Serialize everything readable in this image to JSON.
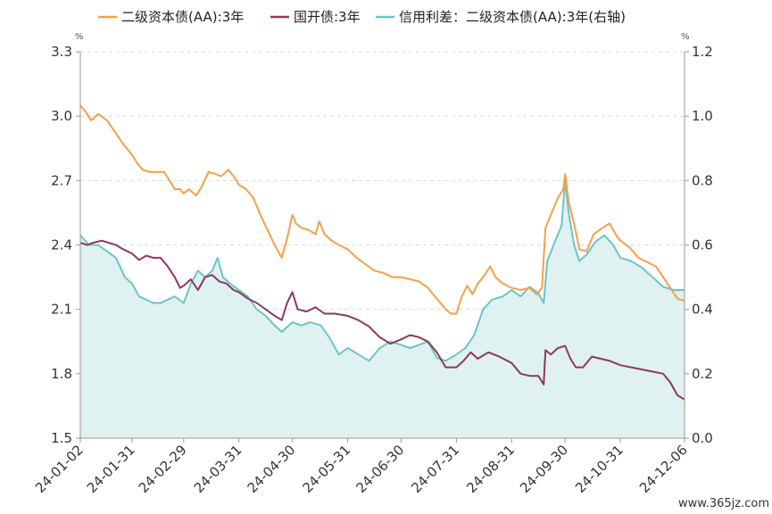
{
  "chart_data": {
    "type": "line",
    "title": "",
    "xlabel": "",
    "ylabel_left_unit": "%",
    "ylabel_right_unit": "%",
    "ylim_left": [
      1.5,
      3.3
    ],
    "ylim_right": [
      0.0,
      1.2
    ],
    "yticks_left": [
      "3.3",
      "3.0",
      "2.7",
      "2.4",
      "2.1",
      "1.8",
      "1.5"
    ],
    "yticks_right": [
      "1.2",
      "1.0",
      "0.8",
      "0.6",
      "0.4",
      "0.2",
      "0.0"
    ],
    "xticks": [
      "24-01-02",
      "24-01-31",
      "24-02-29",
      "24-03-31",
      "24-04-30",
      "24-05-31",
      "24-06-30",
      "24-07-31",
      "24-08-31",
      "24-09-30",
      "24-10-31",
      "24-12-06"
    ],
    "xlim": [
      "2024-01-02",
      "2024-12-06"
    ],
    "grid": true,
    "legend_position": "top",
    "series": [
      {
        "name": "二级资本债(AA):3年",
        "axis": "left",
        "color": "#f5a04a",
        "style": "line",
        "points": [
          [
            "2024-01-02",
            3.05
          ],
          [
            "2024-01-05",
            3.02
          ],
          [
            "2024-01-08",
            2.98
          ],
          [
            "2024-01-12",
            3.01
          ],
          [
            "2024-01-17",
            2.98
          ],
          [
            "2024-01-22",
            2.92
          ],
          [
            "2024-01-26",
            2.87
          ],
          [
            "2024-01-31",
            2.82
          ],
          [
            "2024-02-03",
            2.78
          ],
          [
            "2024-02-06",
            2.75
          ],
          [
            "2024-02-10",
            2.74
          ],
          [
            "2024-02-14",
            2.74
          ],
          [
            "2024-02-18",
            2.74
          ],
          [
            "2024-02-21",
            2.7
          ],
          [
            "2024-02-24",
            2.66
          ],
          [
            "2024-02-27",
            2.66
          ],
          [
            "2024-02-29",
            2.64
          ],
          [
            "2024-03-03",
            2.66
          ],
          [
            "2024-03-07",
            2.63
          ],
          [
            "2024-03-10",
            2.67
          ],
          [
            "2024-03-14",
            2.74
          ],
          [
            "2024-03-18",
            2.73
          ],
          [
            "2024-03-21",
            2.72
          ],
          [
            "2024-03-25",
            2.75
          ],
          [
            "2024-03-28",
            2.72
          ],
          [
            "2024-03-31",
            2.68
          ],
          [
            "2024-04-04",
            2.66
          ],
          [
            "2024-04-08",
            2.62
          ],
          [
            "2024-04-12",
            2.54
          ],
          [
            "2024-04-16",
            2.47
          ],
          [
            "2024-04-20",
            2.4
          ],
          [
            "2024-04-24",
            2.34
          ],
          [
            "2024-04-27",
            2.43
          ],
          [
            "2024-04-30",
            2.54
          ],
          [
            "2024-05-02",
            2.5
          ],
          [
            "2024-05-05",
            2.48
          ],
          [
            "2024-05-09",
            2.47
          ],
          [
            "2024-05-13",
            2.45
          ],
          [
            "2024-05-15",
            2.51
          ],
          [
            "2024-05-18",
            2.45
          ],
          [
            "2024-05-22",
            2.42
          ],
          [
            "2024-05-26",
            2.4
          ],
          [
            "2024-05-31",
            2.38
          ],
          [
            "2024-06-05",
            2.34
          ],
          [
            "2024-06-10",
            2.31
          ],
          [
            "2024-06-15",
            2.28
          ],
          [
            "2024-06-20",
            2.27
          ],
          [
            "2024-06-25",
            2.25
          ],
          [
            "2024-06-30",
            2.25
          ],
          [
            "2024-07-05",
            2.24
          ],
          [
            "2024-07-10",
            2.23
          ],
          [
            "2024-07-15",
            2.2
          ],
          [
            "2024-07-20",
            2.15
          ],
          [
            "2024-07-25",
            2.1
          ],
          [
            "2024-07-28",
            2.08
          ],
          [
            "2024-07-31",
            2.08
          ],
          [
            "2024-08-03",
            2.16
          ],
          [
            "2024-08-06",
            2.21
          ],
          [
            "2024-08-09",
            2.17
          ],
          [
            "2024-08-12",
            2.22
          ],
          [
            "2024-08-15",
            2.25
          ],
          [
            "2024-08-19",
            2.3
          ],
          [
            "2024-08-22",
            2.25
          ],
          [
            "2024-08-26",
            2.22
          ],
          [
            "2024-08-31",
            2.2
          ],
          [
            "2024-09-05",
            2.19
          ],
          [
            "2024-09-10",
            2.2
          ],
          [
            "2024-09-14",
            2.17
          ],
          [
            "2024-09-17",
            2.2
          ],
          [
            "2024-09-19",
            2.48
          ],
          [
            "2024-09-23",
            2.56
          ],
          [
            "2024-09-26",
            2.62
          ],
          [
            "2024-09-29",
            2.66
          ],
          [
            "2024-09-30",
            2.73
          ],
          [
            "2024-10-02",
            2.6
          ],
          [
            "2024-10-05",
            2.5
          ],
          [
            "2024-10-08",
            2.38
          ],
          [
            "2024-10-12",
            2.37
          ],
          [
            "2024-10-16",
            2.45
          ],
          [
            "2024-10-21",
            2.48
          ],
          [
            "2024-10-25",
            2.5
          ],
          [
            "2024-10-29",
            2.44
          ],
          [
            "2024-10-31",
            2.42
          ],
          [
            "2024-11-05",
            2.39
          ],
          [
            "2024-11-10",
            2.34
          ],
          [
            "2024-11-15",
            2.32
          ],
          [
            "2024-11-20",
            2.3
          ],
          [
            "2024-11-24",
            2.25
          ],
          [
            "2024-11-28",
            2.2
          ],
          [
            "2024-12-02",
            2.15
          ],
          [
            "2024-12-06",
            2.14
          ]
        ]
      },
      {
        "name": "国开债:3年",
        "axis": "left",
        "color": "#8a3a5c",
        "style": "line",
        "points": [
          [
            "2024-01-02",
            2.41
          ],
          [
            "2024-01-06",
            2.4
          ],
          [
            "2024-01-09",
            2.41
          ],
          [
            "2024-01-14",
            2.42
          ],
          [
            "2024-01-18",
            2.41
          ],
          [
            "2024-01-22",
            2.4
          ],
          [
            "2024-01-26",
            2.38
          ],
          [
            "2024-01-31",
            2.36
          ],
          [
            "2024-02-04",
            2.33
          ],
          [
            "2024-02-08",
            2.35
          ],
          [
            "2024-02-12",
            2.34
          ],
          [
            "2024-02-16",
            2.34
          ],
          [
            "2024-02-20",
            2.3
          ],
          [
            "2024-02-24",
            2.25
          ],
          [
            "2024-02-27",
            2.2
          ],
          [
            "2024-02-29",
            2.21
          ],
          [
            "2024-03-04",
            2.24
          ],
          [
            "2024-03-08",
            2.19
          ],
          [
            "2024-03-12",
            2.25
          ],
          [
            "2024-03-16",
            2.26
          ],
          [
            "2024-03-20",
            2.23
          ],
          [
            "2024-03-24",
            2.22
          ],
          [
            "2024-03-28",
            2.19
          ],
          [
            "2024-03-31",
            2.18
          ],
          [
            "2024-04-05",
            2.15
          ],
          [
            "2024-04-10",
            2.13
          ],
          [
            "2024-04-15",
            2.1
          ],
          [
            "2024-04-20",
            2.07
          ],
          [
            "2024-04-24",
            2.05
          ],
          [
            "2024-04-27",
            2.13
          ],
          [
            "2024-04-30",
            2.18
          ],
          [
            "2024-05-03",
            2.1
          ],
          [
            "2024-05-08",
            2.09
          ],
          [
            "2024-05-13",
            2.11
          ],
          [
            "2024-05-18",
            2.08
          ],
          [
            "2024-05-24",
            2.08
          ],
          [
            "2024-05-31",
            2.07
          ],
          [
            "2024-06-06",
            2.05
          ],
          [
            "2024-06-12",
            2.02
          ],
          [
            "2024-06-18",
            1.97
          ],
          [
            "2024-06-24",
            1.94
          ],
          [
            "2024-06-30",
            1.96
          ],
          [
            "2024-07-05",
            1.98
          ],
          [
            "2024-07-10",
            1.97
          ],
          [
            "2024-07-15",
            1.95
          ],
          [
            "2024-07-20",
            1.9
          ],
          [
            "2024-07-25",
            1.83
          ],
          [
            "2024-07-31",
            1.83
          ],
          [
            "2024-08-04",
            1.86
          ],
          [
            "2024-08-08",
            1.9
          ],
          [
            "2024-08-12",
            1.87
          ],
          [
            "2024-08-18",
            1.9
          ],
          [
            "2024-08-24",
            1.88
          ],
          [
            "2024-08-31",
            1.85
          ],
          [
            "2024-09-05",
            1.8
          ],
          [
            "2024-09-10",
            1.79
          ],
          [
            "2024-09-15",
            1.79
          ],
          [
            "2024-09-18",
            1.75
          ],
          [
            "2024-09-19",
            1.91
          ],
          [
            "2024-09-22",
            1.89
          ],
          [
            "2024-09-26",
            1.92
          ],
          [
            "2024-09-30",
            1.93
          ],
          [
            "2024-10-03",
            1.87
          ],
          [
            "2024-10-06",
            1.83
          ],
          [
            "2024-10-10",
            1.83
          ],
          [
            "2024-10-15",
            1.88
          ],
          [
            "2024-10-20",
            1.87
          ],
          [
            "2024-10-25",
            1.86
          ],
          [
            "2024-10-31",
            1.84
          ],
          [
            "2024-11-06",
            1.83
          ],
          [
            "2024-11-12",
            1.82
          ],
          [
            "2024-11-18",
            1.81
          ],
          [
            "2024-11-24",
            1.8
          ],
          [
            "2024-11-28",
            1.76
          ],
          [
            "2024-12-02",
            1.7
          ],
          [
            "2024-12-06",
            1.68
          ]
        ]
      },
      {
        "name": "信用利差：二级资本债(AA):3年(右轴)",
        "axis": "right",
        "color": "#6cc4c8",
        "fill": "#dff1f0",
        "style": "area",
        "points": [
          [
            "2024-01-02",
            0.63
          ],
          [
            "2024-01-07",
            0.6
          ],
          [
            "2024-01-12",
            0.6
          ],
          [
            "2024-01-17",
            0.58
          ],
          [
            "2024-01-22",
            0.56
          ],
          [
            "2024-01-27",
            0.5
          ],
          [
            "2024-01-31",
            0.48
          ],
          [
            "2024-02-04",
            0.44
          ],
          [
            "2024-02-08",
            0.43
          ],
          [
            "2024-02-12",
            0.42
          ],
          [
            "2024-02-16",
            0.42
          ],
          [
            "2024-02-20",
            0.43
          ],
          [
            "2024-02-24",
            0.44
          ],
          [
            "2024-02-29",
            0.42
          ],
          [
            "2024-03-04",
            0.48
          ],
          [
            "2024-03-08",
            0.52
          ],
          [
            "2024-03-12",
            0.5
          ],
          [
            "2024-03-16",
            0.52
          ],
          [
            "2024-03-19",
            0.56
          ],
          [
            "2024-03-22",
            0.5
          ],
          [
            "2024-03-26",
            0.48
          ],
          [
            "2024-03-31",
            0.46
          ],
          [
            "2024-04-05",
            0.44
          ],
          [
            "2024-04-10",
            0.4
          ],
          [
            "2024-04-15",
            0.38
          ],
          [
            "2024-04-20",
            0.35
          ],
          [
            "2024-04-24",
            0.33
          ],
          [
            "2024-04-30",
            0.36
          ],
          [
            "2024-05-05",
            0.35
          ],
          [
            "2024-05-10",
            0.36
          ],
          [
            "2024-05-16",
            0.35
          ],
          [
            "2024-05-21",
            0.31
          ],
          [
            "2024-05-26",
            0.26
          ],
          [
            "2024-05-31",
            0.28
          ],
          [
            "2024-06-06",
            0.26
          ],
          [
            "2024-06-12",
            0.24
          ],
          [
            "2024-06-18",
            0.28
          ],
          [
            "2024-06-24",
            0.3
          ],
          [
            "2024-06-30",
            0.29
          ],
          [
            "2024-07-05",
            0.28
          ],
          [
            "2024-07-10",
            0.29
          ],
          [
            "2024-07-15",
            0.3
          ],
          [
            "2024-07-20",
            0.25
          ],
          [
            "2024-07-25",
            0.24
          ],
          [
            "2024-07-31",
            0.26
          ],
          [
            "2024-08-05",
            0.28
          ],
          [
            "2024-08-10",
            0.32
          ],
          [
            "2024-08-15",
            0.4
          ],
          [
            "2024-08-20",
            0.43
          ],
          [
            "2024-08-26",
            0.44
          ],
          [
            "2024-08-31",
            0.46
          ],
          [
            "2024-09-05",
            0.44
          ],
          [
            "2024-09-10",
            0.47
          ],
          [
            "2024-09-15",
            0.45
          ],
          [
            "2024-09-18",
            0.42
          ],
          [
            "2024-09-20",
            0.55
          ],
          [
            "2024-09-25",
            0.62
          ],
          [
            "2024-09-28",
            0.66
          ],
          [
            "2024-09-30",
            0.8
          ],
          [
            "2024-10-02",
            0.7
          ],
          [
            "2024-10-05",
            0.6
          ],
          [
            "2024-10-08",
            0.55
          ],
          [
            "2024-10-12",
            0.57
          ],
          [
            "2024-10-17",
            0.61
          ],
          [
            "2024-10-22",
            0.63
          ],
          [
            "2024-10-27",
            0.6
          ],
          [
            "2024-10-31",
            0.56
          ],
          [
            "2024-11-06",
            0.55
          ],
          [
            "2024-11-12",
            0.53
          ],
          [
            "2024-11-18",
            0.5
          ],
          [
            "2024-11-24",
            0.47
          ],
          [
            "2024-11-30",
            0.46
          ],
          [
            "2024-12-06",
            0.46
          ]
        ]
      }
    ]
  },
  "watermark": "www.365jz.com"
}
